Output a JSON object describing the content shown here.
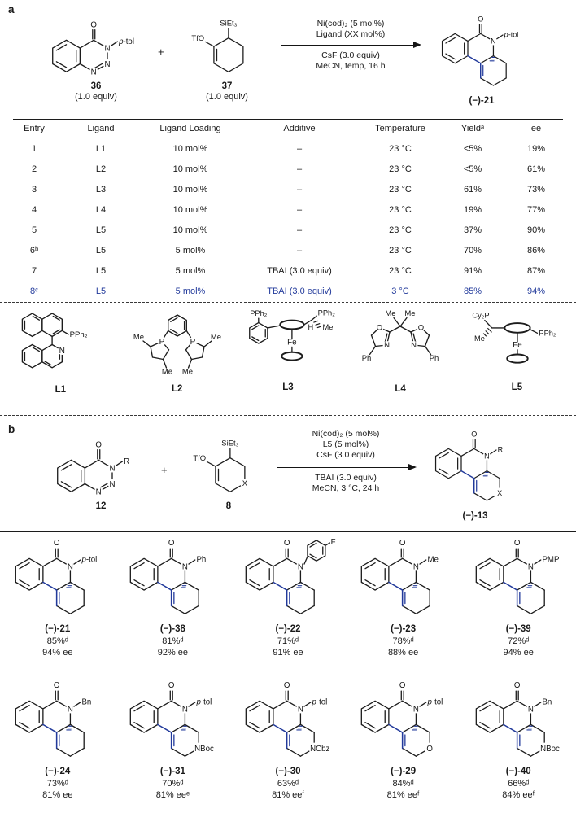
{
  "colors": {
    "accent": "#223a9b",
    "ink": "#1a1a1a"
  },
  "atoms": {
    "o": "O",
    "n": "N",
    "f": "F"
  },
  "panel_a": {
    "tag": "a",
    "reactant1": {
      "id": "36",
      "equiv": "(1.0 equiv)",
      "sub": "p-tol"
    },
    "plus": "+",
    "reactant2": {
      "id": "37",
      "equiv": "(1.0 equiv)",
      "otf": "TfO",
      "si": "SiEt₃"
    },
    "conditions_above": [
      "Ni(cod)₂ (5 mol%)",
      "Ligand (XX mol%)"
    ],
    "conditions_below": [
      "CsF (3.0 equiv)",
      "MeCN, temp, 16 h"
    ],
    "product": {
      "id": "(−)-21",
      "sub": "p-tol"
    }
  },
  "table": {
    "headers": [
      "Entry",
      "Ligand",
      "Ligand Loading",
      "Additive",
      "Temperature",
      "Yieldᵃ",
      "ee"
    ],
    "rows": [
      {
        "cells": [
          "1",
          "L1",
          "10 mol%",
          "–",
          "23 °C",
          "<5%",
          "19%"
        ],
        "hl": false
      },
      {
        "cells": [
          "2",
          "L2",
          "10 mol%",
          "–",
          "23 °C",
          "<5%",
          "61%"
        ],
        "hl": false
      },
      {
        "cells": [
          "3",
          "L3",
          "10 mol%",
          "–",
          "23 °C",
          "61%",
          "73%"
        ],
        "hl": false
      },
      {
        "cells": [
          "4",
          "L4",
          "10 mol%",
          "–",
          "23 °C",
          "19%",
          "77%"
        ],
        "hl": false
      },
      {
        "cells": [
          "5",
          "L5",
          "10 mol%",
          "–",
          "23 °C",
          "37%",
          "90%"
        ],
        "hl": false
      },
      {
        "cells": [
          "6ᵇ",
          "L5",
          "5 mol%",
          "–",
          "23 °C",
          "70%",
          "86%"
        ],
        "hl": false
      },
      {
        "cells": [
          "7",
          "L5",
          "5 mol%",
          "TBAI (3.0 equiv)",
          "23 °C",
          "91%",
          "87%"
        ],
        "hl": false
      },
      {
        "cells": [
          "8ᶜ",
          "L5",
          "5 mol%",
          "TBAI (3.0 equiv)",
          "3 °C",
          "85%",
          "94%"
        ],
        "hl": true
      }
    ]
  },
  "ligands": {
    "l1": {
      "id": "L1",
      "pph2": "PPh₂",
      "n": "N"
    },
    "l2": {
      "id": "L2",
      "me_tl": "Me",
      "me_tr": "Me",
      "p_l": "P",
      "p_r": "P",
      "me_bl": "Me",
      "me_br": "Me"
    },
    "l3": {
      "id": "L3",
      "pph2_a": "PPh₂",
      "pph2_b": "PPh₂",
      "me": "Me",
      "h": "H",
      "fe": "Fe"
    },
    "l4": {
      "id": "L4",
      "me1": "Me",
      "me2": "Me",
      "o1": "O",
      "o2": "O",
      "n1": "N",
      "n2": "N",
      "ph1": "Ph",
      "ph2": "Ph"
    },
    "l5": {
      "id": "L5",
      "cy2p": "Cy₂P",
      "me": "Me",
      "fe": "Fe",
      "pph2": "PPh₂"
    }
  },
  "panel_b": {
    "tag": "b",
    "reactant1": {
      "id": "12",
      "sub": "R"
    },
    "plus": "+",
    "reactant2": {
      "id": "8",
      "otf": "TfO",
      "si": "SiEt₃",
      "x": "X"
    },
    "conditions_above": [
      "Ni(cod)₂ (5 mol%)",
      "L5 (5 mol%)",
      "CsF (3.0 equiv)"
    ],
    "conditions_below": [
      "TBAI (3.0 equiv)",
      "MeCN, 3 °C, 24 h"
    ],
    "product": {
      "id": "(−)-13",
      "sub": "R",
      "x": "X"
    }
  },
  "products": [
    {
      "id": "(−)-21",
      "yield": "85%ᵈ",
      "ee": "94% ee",
      "nsub": "p-tol",
      "x": "",
      "fluoroaryl": false
    },
    {
      "id": "(−)-38",
      "yield": "81%ᵈ",
      "ee": "92% ee",
      "nsub": "Ph",
      "x": "",
      "fluoroaryl": false
    },
    {
      "id": "(−)-22",
      "yield": "71%ᵈ",
      "ee": "91% ee",
      "nsub": "",
      "x": "",
      "fluoroaryl": true
    },
    {
      "id": "(−)-23",
      "yield": "78%ᵈ",
      "ee": "88% ee",
      "nsub": "Me",
      "x": "",
      "fluoroaryl": false
    },
    {
      "id": "(−)-39",
      "yield": "72%ᵈ",
      "ee": "94% ee",
      "nsub": "PMP",
      "x": "",
      "fluoroaryl": false
    },
    {
      "id": "(−)-24",
      "yield": "73%ᵈ",
      "ee": "81% ee",
      "nsub": "Bn",
      "x": "",
      "fluoroaryl": false
    },
    {
      "id": "(−)-31",
      "yield": "70%ᵈ",
      "ee": "81% eeᵉ",
      "nsub": "p-tol",
      "x": "NBoc",
      "fluoroaryl": false
    },
    {
      "id": "(−)-30",
      "yield": "63%ᵈ",
      "ee": "81% eeᶠ",
      "nsub": "p-tol",
      "x": "NCbz",
      "fluoroaryl": false
    },
    {
      "id": "(−)-29",
      "yield": "84%ᵈ",
      "ee": "81% eeᶠ",
      "nsub": "p-tol",
      "x": "O",
      "fluoroaryl": false
    },
    {
      "id": "(−)-40",
      "yield": "66%ᵈ",
      "ee": "84% eeᶠ",
      "nsub": "Bn",
      "x": "NBoc",
      "fluoroaryl": false
    }
  ]
}
